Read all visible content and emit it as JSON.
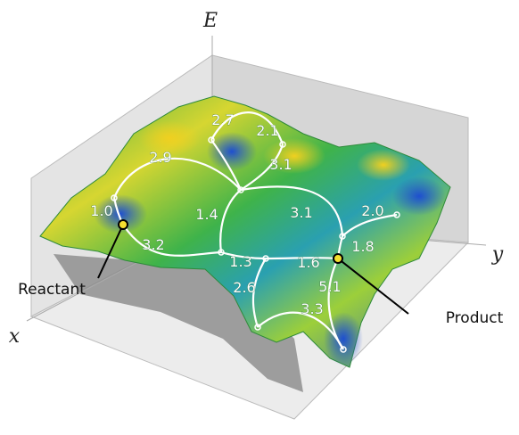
{
  "axes": {
    "e": "E",
    "x": "x",
    "y": "y"
  },
  "reactant": "Reactant",
  "product": "Product",
  "edges": [
    {
      "label": "2.7"
    },
    {
      "label": "2.1"
    },
    {
      "label": "2.9"
    },
    {
      "label": "3.1"
    },
    {
      "label": "1.0"
    },
    {
      "label": "1.4"
    },
    {
      "label": "3.1"
    },
    {
      "label": "2.0"
    },
    {
      "label": "1.8"
    },
    {
      "label": "3.2"
    },
    {
      "label": "1.3"
    },
    {
      "label": "1.6"
    },
    {
      "label": "2.6"
    },
    {
      "label": "5.1"
    },
    {
      "label": "3.3"
    }
  ]
}
